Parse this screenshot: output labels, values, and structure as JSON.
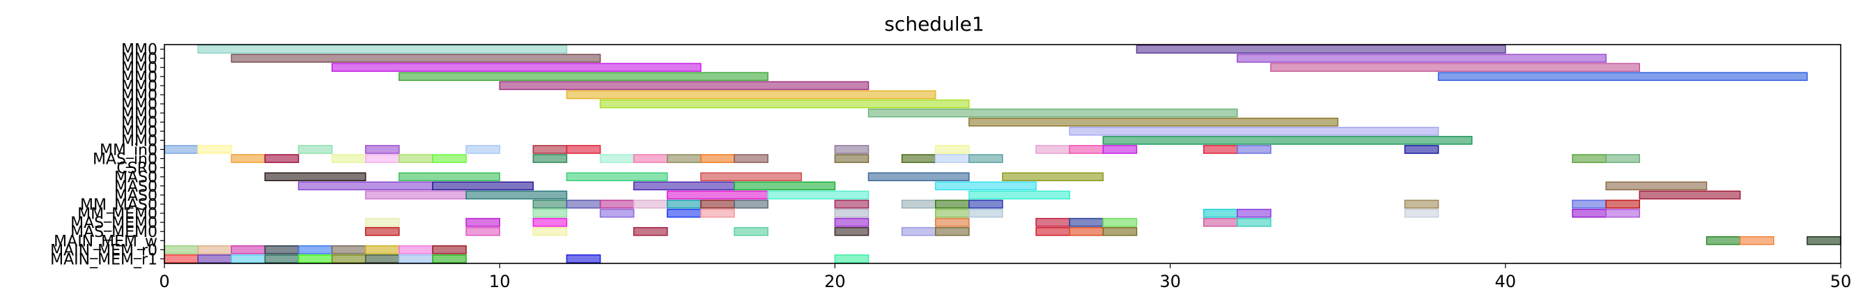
{
  "chart_data": {
    "type": "gantt",
    "title": "schedule1",
    "xlim": [
      0,
      50
    ],
    "x_ticks": [
      0,
      10,
      20,
      30,
      40,
      50
    ],
    "grid": false,
    "y_labels": [
      "MM0",
      "MM0",
      "MM0",
      "MM0",
      "MM0",
      "MM0",
      "MM0",
      "MM0",
      "MM0",
      "MM0",
      "MM0",
      "MM_in0",
      "MAS_in0",
      "CSR0",
      "MAS0",
      "MAS0",
      "MAS0",
      "MM_MAS0",
      "MM_MEM0",
      "MAS_MEM0",
      "MAS_MEM0",
      "MAIN_MEM_w",
      "MAIN_MEM_r0",
      "MAIN_MEM_r1"
    ],
    "rows": [
      {
        "label": "MM0",
        "tasks": [
          {
            "start": 1,
            "end": 12,
            "color": "#8dd3c7"
          },
          {
            "start": 29,
            "end": 40,
            "color": "#5e3c99"
          }
        ]
      },
      {
        "label": "MM0",
        "tasks": [
          {
            "start": 2,
            "end": 13,
            "color": "#7b4f55"
          },
          {
            "start": 32,
            "end": 43,
            "color": "#9b4fd0"
          }
        ]
      },
      {
        "label": "MM0",
        "tasks": [
          {
            "start": 5,
            "end": 16,
            "color": "#c71ce6"
          },
          {
            "start": 33,
            "end": 44,
            "color": "#c45a9a"
          }
        ]
      },
      {
        "label": "MM0",
        "tasks": [
          {
            "start": 7,
            "end": 18,
            "color": "#3ea83b"
          },
          {
            "start": 38,
            "end": 49,
            "color": "#2f5fe0"
          }
        ]
      },
      {
        "label": "MM0",
        "tasks": [
          {
            "start": 10,
            "end": 21,
            "color": "#a0307f"
          }
        ]
      },
      {
        "label": "MM0",
        "tasks": [
          {
            "start": 12,
            "end": 23,
            "color": "#e6b52a"
          }
        ]
      },
      {
        "label": "MM0",
        "tasks": [
          {
            "start": 13,
            "end": 24,
            "color": "#a8e02a"
          }
        ]
      },
      {
        "label": "MM0",
        "tasks": [
          {
            "start": 21,
            "end": 32,
            "color": "#6fb27a"
          }
        ]
      },
      {
        "label": "MM0",
        "tasks": [
          {
            "start": 24,
            "end": 35,
            "color": "#8c7a2c"
          }
        ]
      },
      {
        "label": "MM0",
        "tasks": [
          {
            "start": 27,
            "end": 38,
            "color": "#a8a8f0"
          }
        ]
      },
      {
        "label": "MM0",
        "tasks": [
          {
            "start": 28,
            "end": 39,
            "color": "#1f9a5a"
          }
        ]
      },
      {
        "label": "MM_in0",
        "tasks": [
          {
            "start": 0,
            "end": 1,
            "color": "#7aa6e0"
          },
          {
            "start": 1,
            "end": 2,
            "color": "#fff59a"
          },
          {
            "start": 4,
            "end": 5,
            "color": "#8fe0b0"
          },
          {
            "start": 6,
            "end": 7,
            "color": "#9b4fd0"
          },
          {
            "start": 9,
            "end": 10,
            "color": "#a6c8f5"
          },
          {
            "start": 11,
            "end": 12,
            "color": "#b03040"
          },
          {
            "start": 12,
            "end": 13,
            "color": "#e0203a"
          },
          {
            "start": 20,
            "end": 21,
            "color": "#8c7a9a"
          },
          {
            "start": 23,
            "end": 24,
            "color": "#f0f59a"
          },
          {
            "start": 26,
            "end": 27,
            "color": "#e8a0d0"
          },
          {
            "start": 27,
            "end": 28,
            "color": "#f050b0"
          },
          {
            "start": 28,
            "end": 29,
            "color": "#c71ce6"
          },
          {
            "start": 31,
            "end": 32,
            "color": "#e0203a"
          },
          {
            "start": 32,
            "end": 33,
            "color": "#6f6fe0"
          },
          {
            "start": 37,
            "end": 38,
            "color": "#1a1aa0"
          }
        ]
      },
      {
        "label": "MAS_in0",
        "tasks": [
          {
            "start": 2,
            "end": 3,
            "color": "#f0a030"
          },
          {
            "start": 3,
            "end": 4,
            "color": "#a01040"
          },
          {
            "start": 5,
            "end": 6,
            "color": "#e8f59a"
          },
          {
            "start": 6,
            "end": 7,
            "color": "#f5b0f0"
          },
          {
            "start": 7,
            "end": 8,
            "color": "#a8e06a"
          },
          {
            "start": 8,
            "end": 9,
            "color": "#6af53a"
          },
          {
            "start": 11,
            "end": 12,
            "color": "#2f8a5a"
          },
          {
            "start": 13,
            "end": 14,
            "color": "#a0f0d0"
          },
          {
            "start": 14,
            "end": 15,
            "color": "#f07ab0"
          },
          {
            "start": 15,
            "end": 16,
            "color": "#8c8a5a"
          },
          {
            "start": 16,
            "end": 17,
            "color": "#f07a20"
          },
          {
            "start": 17,
            "end": 18,
            "color": "#8c5a5a"
          },
          {
            "start": 20,
            "end": 21,
            "color": "#7a6a3a"
          },
          {
            "start": 22,
            "end": 23,
            "color": "#4a6a1a"
          },
          {
            "start": 23,
            "end": 24,
            "color": "#b8d0f5"
          },
          {
            "start": 24,
            "end": 25,
            "color": "#5aa0a0"
          },
          {
            "start": 42,
            "end": 43,
            "color": "#5aa03a"
          },
          {
            "start": 43,
            "end": 44,
            "color": "#6ab07a"
          }
        ]
      },
      {
        "label": "CSR0",
        "tasks": []
      },
      {
        "label": "MAS0",
        "tasks": [
          {
            "start": 3,
            "end": 6,
            "color": "#2a1a1a"
          },
          {
            "start": 7,
            "end": 10,
            "color": "#3ac05a"
          },
          {
            "start": 12,
            "end": 15,
            "color": "#3ad07a"
          },
          {
            "start": 16,
            "end": 19,
            "color": "#d04a4a"
          },
          {
            "start": 21,
            "end": 24,
            "color": "#3a6a9a"
          },
          {
            "start": 25,
            "end": 28,
            "color": "#8c9a1a"
          }
        ]
      },
      {
        "label": "MAS0",
        "tasks": [
          {
            "start": 4,
            "end": 8,
            "color": "#8a4ad0"
          },
          {
            "start": 8,
            "end": 11,
            "color": "#2a1a9a"
          },
          {
            "start": 14,
            "end": 17,
            "color": "#4a2ab0"
          },
          {
            "start": 17,
            "end": 20,
            "color": "#1ab03a"
          },
          {
            "start": 23,
            "end": 26,
            "color": "#3ae0f0"
          },
          {
            "start": 43,
            "end": 46,
            "color": "#8c6a4a"
          }
        ]
      },
      {
        "label": "MAS0",
        "tasks": [
          {
            "start": 6,
            "end": 9,
            "color": "#d07ad0"
          },
          {
            "start": 9,
            "end": 12,
            "color": "#2a7a7a"
          },
          {
            "start": 15,
            "end": 18,
            "color": "#e01ad0"
          },
          {
            "start": 18,
            "end": 21,
            "color": "#5af0d0"
          },
          {
            "start": 24,
            "end": 27,
            "color": "#3af0d0"
          },
          {
            "start": 44,
            "end": 47,
            "color": "#a01a3a"
          }
        ]
      },
      {
        "label": "MM_MAS0",
        "tasks": [
          {
            "start": 11,
            "end": 12,
            "color": "#3a8a6a"
          },
          {
            "start": 12,
            "end": 13,
            "color": "#5a5ab0"
          },
          {
            "start": 13,
            "end": 14,
            "color": "#c03a9a"
          },
          {
            "start": 14,
            "end": 15,
            "color": "#e0b0d0"
          },
          {
            "start": 15,
            "end": 16,
            "color": "#1aa0b0"
          },
          {
            "start": 16,
            "end": 17,
            "color": "#8a2a2a"
          },
          {
            "start": 17,
            "end": 18,
            "color": "#5a6a7a"
          },
          {
            "start": 20,
            "end": 21,
            "color": "#a02a5a"
          },
          {
            "start": 22,
            "end": 23,
            "color": "#9ab0b8"
          },
          {
            "start": 23,
            "end": 24,
            "color": "#3a7a1a"
          },
          {
            "start": 24,
            "end": 25,
            "color": "#2a3ab0"
          },
          {
            "start": 37,
            "end": 38,
            "color": "#a08a5a"
          },
          {
            "start": 42,
            "end": 43,
            "color": "#5a6ae0"
          },
          {
            "start": 43,
            "end": 44,
            "color": "#c01a1a"
          }
        ]
      },
      {
        "label": "MM_MEM0",
        "tasks": [
          {
            "start": 11,
            "end": 12,
            "color": "#8ae0a0"
          },
          {
            "start": 13,
            "end": 14,
            "color": "#8a6ae0"
          },
          {
            "start": 15,
            "end": 16,
            "color": "#1a3af0"
          },
          {
            "start": 16,
            "end": 17,
            "color": "#f09aa0"
          },
          {
            "start": 20,
            "end": 21,
            "color": "#b0b8c8"
          },
          {
            "start": 23,
            "end": 24,
            "color": "#8ac05a"
          },
          {
            "start": 24,
            "end": 25,
            "color": "#b0c8d8"
          },
          {
            "start": 31,
            "end": 32,
            "color": "#1ad0d0"
          },
          {
            "start": 32,
            "end": 33,
            "color": "#8a3ae0"
          },
          {
            "start": 37,
            "end": 38,
            "color": "#c8d0e0"
          },
          {
            "start": 42,
            "end": 43,
            "color": "#9a1ad0"
          },
          {
            "start": 43,
            "end": 44,
            "color": "#b05ae0"
          }
        ]
      },
      {
        "label": "MAS_MEM0",
        "tasks": [
          {
            "start": 6,
            "end": 7,
            "color": "#e8f0b0"
          },
          {
            "start": 9,
            "end": 10,
            "color": "#c01ad0"
          },
          {
            "start": 11,
            "end": 12,
            "color": "#f01ae0"
          },
          {
            "start": 20,
            "end": 21,
            "color": "#9a2ad0"
          },
          {
            "start": 23,
            "end": 24,
            "color": "#e07a3a"
          },
          {
            "start": 26,
            "end": 27,
            "color": "#c01a3a"
          },
          {
            "start": 27,
            "end": 28,
            "color": "#2a3a9a"
          },
          {
            "start": 28,
            "end": 29,
            "color": "#6ae05a"
          },
          {
            "start": 31,
            "end": 32,
            "color": "#d05aa0"
          },
          {
            "start": 32,
            "end": 33,
            "color": "#3ad0c0"
          }
        ]
      },
      {
        "label": "MAS_MEM0",
        "tasks": [
          {
            "start": 6,
            "end": 7,
            "color": "#c01a1a"
          },
          {
            "start": 9,
            "end": 10,
            "color": "#e05ac0"
          },
          {
            "start": 11,
            "end": 12,
            "color": "#f0f0a0"
          },
          {
            "start": 14,
            "end": 15,
            "color": "#a01a3a"
          },
          {
            "start": 17,
            "end": 18,
            "color": "#5ad0a0"
          },
          {
            "start": 20,
            "end": 21,
            "color": "#3a2a2a"
          },
          {
            "start": 22,
            "end": 23,
            "color": "#9a9ae0"
          },
          {
            "start": 23,
            "end": 24,
            "color": "#7a6a3a"
          },
          {
            "start": 26,
            "end": 27,
            "color": "#d01a2a"
          },
          {
            "start": 27,
            "end": 28,
            "color": "#e04a1a"
          },
          {
            "start": 28,
            "end": 29,
            "color": "#7a6a1a"
          }
        ]
      },
      {
        "label": "MAIN_MEM_w",
        "tasks": [
          {
            "start": 46,
            "end": 47,
            "color": "#2a8a2a"
          },
          {
            "start": 47,
            "end": 48,
            "color": "#f5803a"
          },
          {
            "start": 49,
            "end": 50,
            "color": "#1a3a1a"
          }
        ]
      },
      {
        "label": "MAIN_MEM_r0",
        "tasks": [
          {
            "start": 0,
            "end": 1,
            "color": "#9ad07a"
          },
          {
            "start": 1,
            "end": 2,
            "color": "#e0b08a"
          },
          {
            "start": 2,
            "end": 3,
            "color": "#d03ab0"
          },
          {
            "start": 3,
            "end": 4,
            "color": "#2a3a4a"
          },
          {
            "start": 4,
            "end": 5,
            "color": "#3a7af0"
          },
          {
            "start": 5,
            "end": 6,
            "color": "#7a6a5a"
          },
          {
            "start": 6,
            "end": 7,
            "color": "#d0b01a"
          },
          {
            "start": 7,
            "end": 8,
            "color": "#f07ae0"
          },
          {
            "start": 8,
            "end": 9,
            "color": "#9a1a2a"
          }
        ]
      },
      {
        "label": "MAIN_MEM_r1",
        "tasks": [
          {
            "start": 0,
            "end": 1,
            "color": "#f03a3a"
          },
          {
            "start": 1,
            "end": 2,
            "color": "#6a3ab0"
          },
          {
            "start": 2,
            "end": 3,
            "color": "#5ad0f0"
          },
          {
            "start": 3,
            "end": 4,
            "color": "#2a6a5a"
          },
          {
            "start": 4,
            "end": 5,
            "color": "#3af01a"
          },
          {
            "start": 5,
            "end": 6,
            "color": "#7a8a1a"
          },
          {
            "start": 6,
            "end": 7,
            "color": "#3a5a3a"
          },
          {
            "start": 7,
            "end": 8,
            "color": "#9ac0f0"
          },
          {
            "start": 8,
            "end": 9,
            "color": "#2ab01a"
          },
          {
            "start": 12,
            "end": 13,
            "color": "#1a1ae0"
          },
          {
            "start": 20,
            "end": 21,
            "color": "#3af0a0"
          }
        ]
      }
    ]
  }
}
